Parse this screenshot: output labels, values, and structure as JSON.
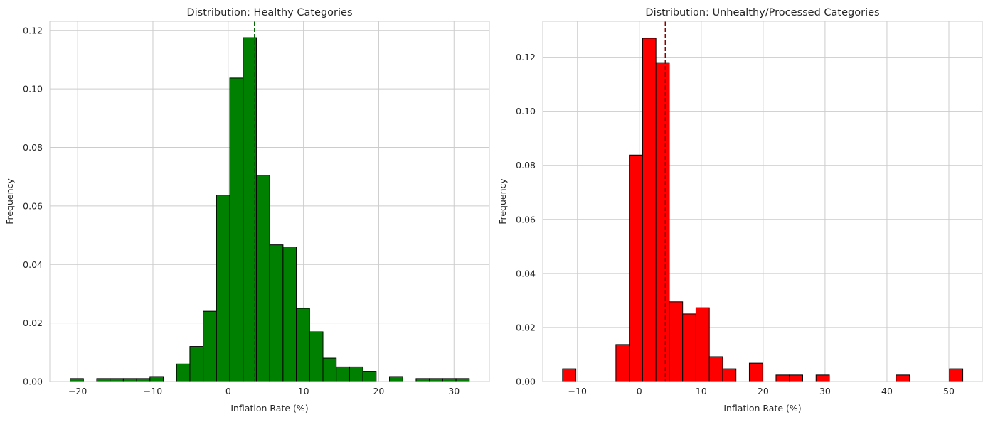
{
  "chart_data": [
    {
      "type": "bar",
      "title": "Distribution: Healthy Categories",
      "xlabel": "Inflation Rate (%)",
      "ylabel": "Frequency",
      "xlim": [
        -23.7,
        34.7
      ],
      "ylim": [
        0,
        0.1231
      ],
      "xticks": [
        -20,
        -10,
        0,
        10,
        20,
        30
      ],
      "xtick_labels": [
        "−20",
        "−10",
        "0",
        "10",
        "20",
        "30"
      ],
      "yticks": [
        0,
        0.02,
        0.04,
        0.06,
        0.08,
        0.1,
        0.12
      ],
      "ytick_labels": [
        "0.00",
        "0.02",
        "0.04",
        "0.06",
        "0.08",
        "0.10",
        "0.12"
      ],
      "grid": true,
      "bar_color": "#008000",
      "edge_color": "#000000",
      "mean_line": {
        "x": 3.5,
        "color": "#006400",
        "style": "dashed"
      },
      "bin_edges": [
        -21.0,
        -19.232,
        -17.465,
        -15.697,
        -13.929,
        -12.161,
        -10.394,
        -8.626,
        -6.858,
        -5.09,
        -3.323,
        -1.555,
        0.213,
        1.981,
        3.748,
        5.516,
        7.284,
        9.052,
        10.819,
        12.587,
        14.355,
        16.123,
        17.89,
        19.658,
        21.426,
        23.194,
        24.961,
        26.729,
        28.497,
        30.265,
        32.032
      ],
      "values": [
        0.001,
        0.0,
        0.001,
        0.001,
        0.001,
        0.001,
        0.0017,
        0.0,
        0.006,
        0.012,
        0.024,
        0.0637,
        0.1037,
        0.1175,
        0.0705,
        0.0467,
        0.046,
        0.025,
        0.017,
        0.008,
        0.005,
        0.005,
        0.0035,
        0.0,
        0.0017,
        0.0,
        0.001,
        0.001,
        0.001,
        0.001
      ]
    },
    {
      "type": "bar",
      "title": "Distribution: Unhealthy/Processed Categories",
      "xlabel": "Inflation Rate (%)",
      "ylabel": "Frequency",
      "xlim": [
        -15.6,
        55.4
      ],
      "ylim": [
        0,
        0.1333
      ],
      "xticks": [
        -10,
        0,
        10,
        20,
        30,
        40,
        50
      ],
      "xtick_labels": [
        "−10",
        "0",
        "10",
        "20",
        "30",
        "40",
        "50"
      ],
      "yticks": [
        0,
        0.02,
        0.04,
        0.06,
        0.08,
        0.1,
        0.12
      ],
      "ytick_labels": [
        "0.00",
        "0.02",
        "0.04",
        "0.06",
        "0.08",
        "0.10",
        "0.12"
      ],
      "grid": true,
      "bar_color": "#ff0000",
      "edge_color": "#000000",
      "mean_line": {
        "x": 4.2,
        "color": "#8b0000",
        "style": "dashed"
      },
      "bin_edges": [
        -12.4,
        -10.245,
        -8.09,
        -5.935,
        -3.78,
        -1.625,
        0.53,
        2.685,
        4.84,
        6.995,
        9.15,
        11.305,
        13.46,
        15.615,
        17.77,
        19.925,
        22.08,
        24.235,
        26.39,
        28.545,
        30.7,
        32.855,
        35.01,
        37.165,
        39.32,
        41.475,
        43.63,
        45.785,
        47.94,
        50.095,
        52.25
      ],
      "values": [
        0.0047,
        0.0,
        0.0,
        0.0,
        0.0137,
        0.0838,
        0.127,
        0.118,
        0.0295,
        0.025,
        0.0273,
        0.0092,
        0.0047,
        0.0,
        0.0068,
        0.0,
        0.0024,
        0.0024,
        0.0,
        0.0024,
        0.0,
        0.0,
        0.0,
        0.0,
        0.0,
        0.0024,
        0.0,
        0.0,
        0.0,
        0.0047
      ]
    }
  ]
}
